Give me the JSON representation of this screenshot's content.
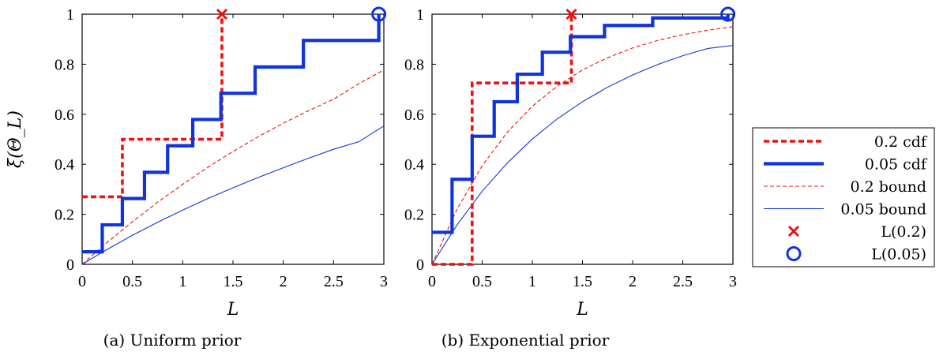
{
  "chart_data": [
    {
      "type": "line",
      "caption": "(a) Uniform prior",
      "xlabel": "L",
      "ylabel": "ξ(Θ_L)",
      "xlim": [
        0,
        3
      ],
      "ylim": [
        0,
        1
      ],
      "xticks": [
        "0",
        "0.5",
        "1",
        "1.5",
        "2",
        "2.5",
        "3"
      ],
      "yticks": [
        "0",
        "0.2",
        "0.4",
        "0.6",
        "0.8",
        "1"
      ],
      "series": [
        {
          "name": "0.2 cdf",
          "kind": "step",
          "x": [
            0,
            0.4,
            1.39,
            1.39
          ],
          "y": [
            0.27,
            0.5,
            0.5,
            1.0
          ]
        },
        {
          "name": "0.05 cdf",
          "kind": "step",
          "x": [
            0,
            0.2,
            0.4,
            0.62,
            0.85,
            1.1,
            1.38,
            1.72,
            2.2,
            2.95,
            2.95
          ],
          "y": [
            0.05,
            0.158,
            0.263,
            0.368,
            0.474,
            0.579,
            0.684,
            0.789,
            0.895,
            0.895,
            1.0
          ]
        },
        {
          "name": "0.2 bound",
          "kind": "curve",
          "x": [
            0,
            0.25,
            0.5,
            0.75,
            1.0,
            1.25,
            1.5,
            1.75,
            2.0,
            2.25,
            2.5,
            2.75,
            3.0
          ],
          "y": [
            0,
            0.088,
            0.17,
            0.248,
            0.32,
            0.388,
            0.451,
            0.51,
            0.564,
            0.614,
            0.66,
            0.722,
            0.777
          ]
        },
        {
          "name": "0.05 bound",
          "kind": "curve",
          "x": [
            0,
            0.25,
            0.5,
            0.75,
            1.0,
            1.25,
            1.5,
            1.75,
            2.0,
            2.25,
            2.5,
            2.75,
            3.0
          ],
          "y": [
            0,
            0.06,
            0.116,
            0.168,
            0.217,
            0.263,
            0.306,
            0.347,
            0.386,
            0.424,
            0.46,
            0.49,
            0.553
          ]
        }
      ],
      "markers": [
        {
          "name": "L(0.2)",
          "shape": "cross",
          "x": 1.39,
          "y": 1.0
        },
        {
          "name": "L(0.05)",
          "shape": "circle",
          "x": 2.95,
          "y": 1.0
        }
      ]
    },
    {
      "type": "line",
      "caption": "(b) Exponential prior",
      "xlabel": "L",
      "ylabel": "",
      "xlim": [
        0,
        3
      ],
      "ylim": [
        0,
        1
      ],
      "xticks": [
        "0",
        "0.5",
        "1",
        "1.5",
        "2",
        "2.5",
        "3"
      ],
      "yticks": [
        "0",
        "0.2",
        "0.4",
        "0.6",
        "0.8",
        "1"
      ],
      "series": [
        {
          "name": "0.2 cdf",
          "kind": "step",
          "x": [
            0,
            0.2,
            0.4,
            1.39,
            1.39
          ],
          "y": [
            0.0,
            0.0,
            0.725,
            0.725,
            1.0
          ]
        },
        {
          "name": "0.05 cdf",
          "kind": "step",
          "x": [
            0,
            0.2,
            0.4,
            0.62,
            0.85,
            1.1,
            1.38,
            1.72,
            2.2,
            2.95,
            2.95
          ],
          "y": [
            0.128,
            0.34,
            0.512,
            0.65,
            0.76,
            0.848,
            0.91,
            0.955,
            0.985,
            0.985,
            1.0
          ]
        },
        {
          "name": "0.2 bound",
          "kind": "curve",
          "x": [
            0,
            0.25,
            0.5,
            0.75,
            1.0,
            1.25,
            1.5,
            1.75,
            2.0,
            2.25,
            2.5,
            2.75,
            3.0
          ],
          "y": [
            0,
            0.221,
            0.394,
            0.528,
            0.632,
            0.713,
            0.777,
            0.826,
            0.865,
            0.895,
            0.918,
            0.936,
            0.95
          ]
        },
        {
          "name": "0.05 bound",
          "kind": "curve",
          "x": [
            0,
            0.25,
            0.5,
            0.75,
            1.0,
            1.25,
            1.5,
            1.75,
            2.0,
            2.25,
            2.5,
            2.75,
            3.0
          ],
          "y": [
            0,
            0.158,
            0.292,
            0.405,
            0.501,
            0.582,
            0.65,
            0.708,
            0.757,
            0.799,
            0.834,
            0.863,
            0.875
          ]
        }
      ],
      "markers": [
        {
          "name": "L(0.2)",
          "shape": "cross",
          "x": 1.39,
          "y": 1.0
        },
        {
          "name": "L(0.05)",
          "shape": "circle",
          "x": 2.95,
          "y": 1.0
        }
      ]
    }
  ],
  "legend": {
    "placement": "right",
    "entries": [
      {
        "label": "0.2 cdf",
        "style": "thick-dashed",
        "color": "#ee1111"
      },
      {
        "label": "0.05 cdf",
        "style": "thick-solid",
        "color": "#1133dd"
      },
      {
        "label": "0.2 bound",
        "style": "thin-dashed",
        "color": "#ee1111"
      },
      {
        "label": "0.05 bound",
        "style": "thin-solid",
        "color": "#1133dd"
      },
      {
        "label": "L(0.2)",
        "style": "cross-marker",
        "color": "#ee1111"
      },
      {
        "label": "L(0.05)",
        "style": "circle-marker",
        "color": "#1133dd"
      }
    ]
  },
  "colors": {
    "red": "#ee1111",
    "blue": "#1133dd"
  }
}
